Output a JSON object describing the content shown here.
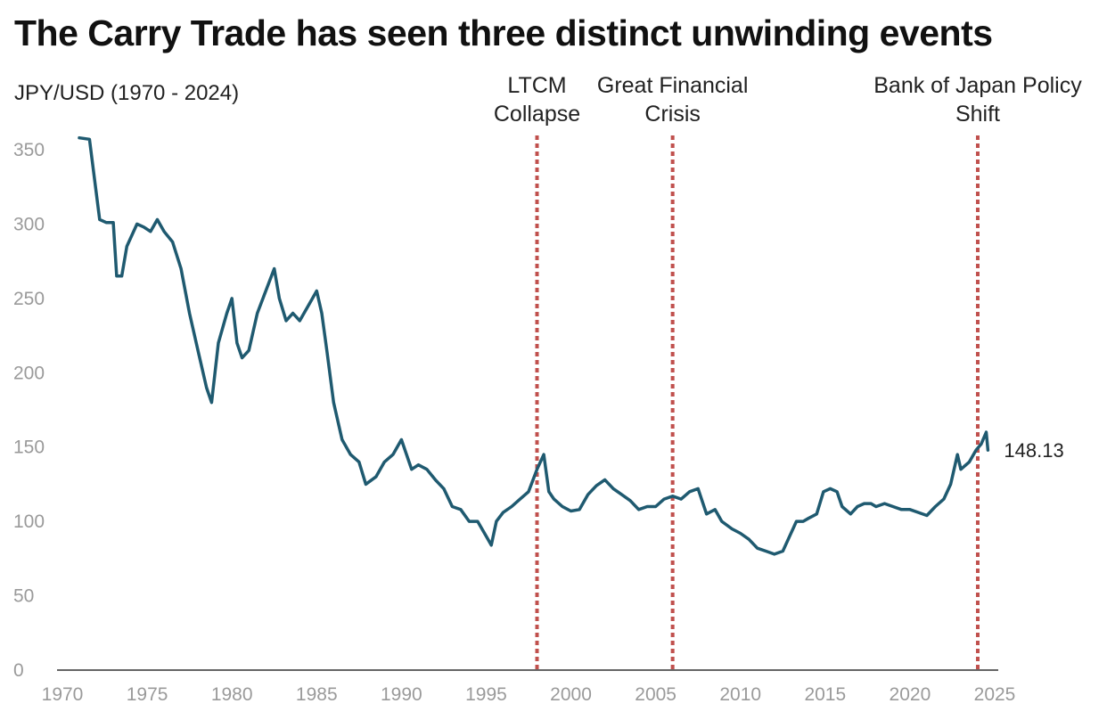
{
  "chart_data": {
    "type": "line",
    "title": "The Carry Trade has seen three distinct unwinding events",
    "ylabel": "JPY/USD (1970 - 2024)",
    "xlim": [
      1970,
      2025
    ],
    "ylim": [
      0,
      350
    ],
    "xticks": [
      1970,
      1975,
      1980,
      1985,
      1990,
      1995,
      2000,
      2005,
      2010,
      2015,
      2020,
      2025
    ],
    "yticks": [
      0,
      50,
      100,
      150,
      200,
      250,
      300,
      350
    ],
    "grid": false,
    "series_color": "#1f5a70",
    "event_color": "#c0504d",
    "events": [
      {
        "x": 1998.0,
        "label_lines": [
          "LTCM",
          "Collapse"
        ]
      },
      {
        "x": 2006.0,
        "label_lines": [
          "Great Financial",
          "Crisis"
        ]
      },
      {
        "x": 2024.0,
        "label_lines": [
          "Bank of Japan Policy",
          "Shift"
        ]
      }
    ],
    "last_value_label": "148.13",
    "series": [
      {
        "x": [
          1971.0,
          1971.6,
          1971.9,
          1972.2,
          1972.6,
          1973.0,
          1973.2,
          1973.5,
          1973.8,
          1974.0,
          1974.4,
          1974.8,
          1975.2,
          1975.6,
          1976.0,
          1976.5,
          1977.0,
          1977.5,
          1978.0,
          1978.5,
          1978.8,
          1979.2,
          1979.7,
          1980.0,
          1980.3,
          1980.6,
          1981.0,
          1981.5,
          1982.0,
          1982.5,
          1982.8,
          1983.2,
          1983.6,
          1984.0,
          1984.5,
          1985.0,
          1985.3,
          1985.6,
          1986.0,
          1986.5,
          1987.0,
          1987.5,
          1987.9,
          1988.5,
          1989.0,
          1989.5,
          1990.0,
          1990.3,
          1990.6,
          1991.0,
          1991.5,
          1992.0,
          1992.5,
          1993.0,
          1993.5,
          1994.0,
          1994.5,
          1995.0,
          1995.3,
          1995.6,
          1996.0,
          1996.5,
          1997.0,
          1997.5,
          1998.0,
          1998.4,
          1998.7,
          1999.0,
          1999.5,
          2000.0,
          2000.5,
          2001.0,
          2001.5,
          2002.0,
          2002.5,
          2003.0,
          2003.5,
          2004.0,
          2004.5,
          2005.0,
          2005.5,
          2006.0,
          2006.5,
          2007.0,
          2007.5,
          2008.0,
          2008.5,
          2008.9,
          2009.5,
          2010.0,
          2010.5,
          2011.0,
          2011.5,
          2012.0,
          2012.5,
          2012.9,
          2013.3,
          2013.7,
          2014.0,
          2014.5,
          2014.9,
          2015.3,
          2015.7,
          2016.0,
          2016.5,
          2016.9,
          2017.3,
          2017.7,
          2018.0,
          2018.5,
          2019.0,
          2019.5,
          2020.0,
          2020.5,
          2021.0,
          2021.5,
          2022.0,
          2022.4,
          2022.8,
          2023.0,
          2023.5,
          2023.9,
          2024.2,
          2024.5,
          2024.6
        ],
        "y": [
          358,
          357,
          330,
          303,
          301,
          301,
          265,
          265,
          285,
          290,
          300,
          298,
          295,
          303,
          295,
          288,
          270,
          240,
          215,
          190,
          180,
          220,
          240,
          250,
          220,
          210,
          215,
          240,
          255,
          270,
          250,
          235,
          240,
          235,
          245,
          255,
          240,
          215,
          180,
          155,
          145,
          140,
          125,
          130,
          140,
          145,
          155,
          145,
          135,
          138,
          135,
          128,
          122,
          110,
          108,
          100,
          100,
          90,
          84,
          100,
          106,
          110,
          115,
          120,
          135,
          145,
          120,
          115,
          110,
          107,
          108,
          118,
          124,
          128,
          122,
          118,
          114,
          108,
          110,
          110,
          115,
          117,
          115,
          120,
          122,
          105,
          108,
          100,
          95,
          92,
          88,
          82,
          80,
          78,
          80,
          90,
          100,
          100,
          102,
          105,
          120,
          122,
          120,
          110,
          105,
          110,
          112,
          112,
          110,
          112,
          110,
          108,
          108,
          106,
          104,
          110,
          115,
          125,
          145,
          135,
          140,
          148,
          152,
          160,
          148
        ]
      }
    ]
  }
}
